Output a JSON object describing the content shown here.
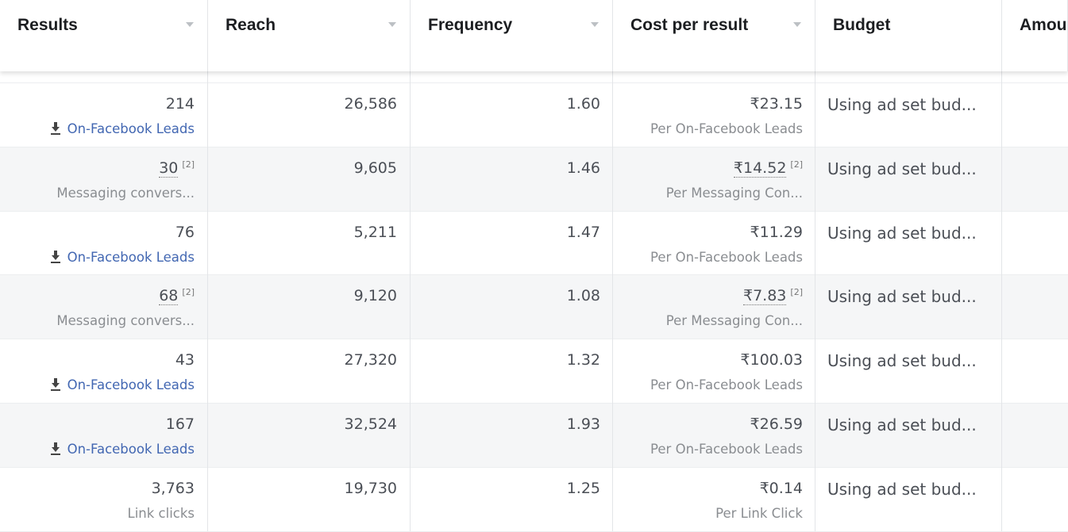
{
  "header": {
    "columns": [
      "Results",
      "Reach",
      "Frequency",
      "Cost per result",
      "Budget",
      "Amou"
    ]
  },
  "table": {
    "rows": [
      {
        "results": "214",
        "results_sub": "On-Facebook Leads",
        "reach": "26,586",
        "frequency": "1.60",
        "cost": "₹23.15",
        "cost_sub": "Per On-Facebook Leads",
        "budget": "Using ad set bud..."
      },
      {
        "results": "30",
        "results_note": "[2]",
        "results_sub": "Messaging convers...",
        "reach": "9,605",
        "frequency": "1.46",
        "cost": "₹14.52",
        "cost_note": "[2]",
        "cost_sub": "Per Messaging Con...",
        "budget": "Using ad set bud..."
      },
      {
        "results": "76",
        "results_sub": "On-Facebook Leads",
        "reach": "5,211",
        "frequency": "1.47",
        "cost": "₹11.29",
        "cost_sub": "Per On-Facebook Leads",
        "budget": "Using ad set bud..."
      },
      {
        "results": "68",
        "results_note": "[2]",
        "results_sub": "Messaging convers...",
        "reach": "9,120",
        "frequency": "1.08",
        "cost": "₹7.83",
        "cost_note": "[2]",
        "cost_sub": "Per Messaging Con...",
        "budget": "Using ad set bud..."
      },
      {
        "results": "43",
        "results_sub": "On-Facebook Leads",
        "reach": "27,320",
        "frequency": "1.32",
        "cost": "₹100.03",
        "cost_sub": "Per On-Facebook Leads",
        "budget": "Using ad set bud..."
      },
      {
        "results": "167",
        "results_sub": "On-Facebook Leads",
        "reach": "32,524",
        "frequency": "1.93",
        "cost": "₹26.59",
        "cost_sub": "Per On-Facebook Leads",
        "budget": "Using ad set bud..."
      },
      {
        "results": "3,763",
        "results_sub": "Link clicks",
        "reach": "19,730",
        "frequency": "1.25",
        "cost": "₹0.14",
        "cost_sub": "Per Link Click",
        "budget": "Using ad set bud..."
      }
    ]
  }
}
